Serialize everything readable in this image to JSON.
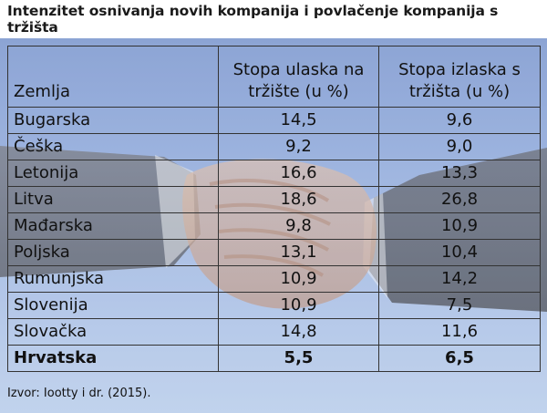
{
  "title": "Intenzitet osnivanja novih kompanija i povlačenje kompanija s tržišta",
  "table": {
    "headers": {
      "country": "Zemlja",
      "entry_rate": "Stopa ulaska na tržište (u %)",
      "exit_rate": "Stopa izlaska s tržišta (u %)"
    },
    "rows": [
      {
        "country": "Bugarska",
        "entry": "14,5",
        "exit": "9,6"
      },
      {
        "country": "Češka",
        "entry": "9,2",
        "exit": "9,0"
      },
      {
        "country": "Letonija",
        "entry": "16,6",
        "exit": "13,3"
      },
      {
        "country": "Litva",
        "entry": "18,6",
        "exit": "26,8"
      },
      {
        "country": "Mađarska",
        "entry": "9,8",
        "exit": "10,9"
      },
      {
        "country": "Poljska",
        "entry": "13,1",
        "exit": "10,4"
      },
      {
        "country": "Rumunjska",
        "entry": "10,9",
        "exit": "14,2"
      },
      {
        "country": "Slovenija",
        "entry": "10,9",
        "exit": "7,5"
      },
      {
        "country": "Slovačka",
        "entry": "14,8",
        "exit": "11,6"
      },
      {
        "country": "Hrvatska",
        "entry": "5,5",
        "exit": "6,5"
      }
    ]
  },
  "source": "Izvor: Iootty i dr. (2015).",
  "background_image": "handshake-photo",
  "colors": {
    "sky_top": "#7d98cf",
    "sky_bottom": "#b9cdeb",
    "border": "#333333"
  }
}
